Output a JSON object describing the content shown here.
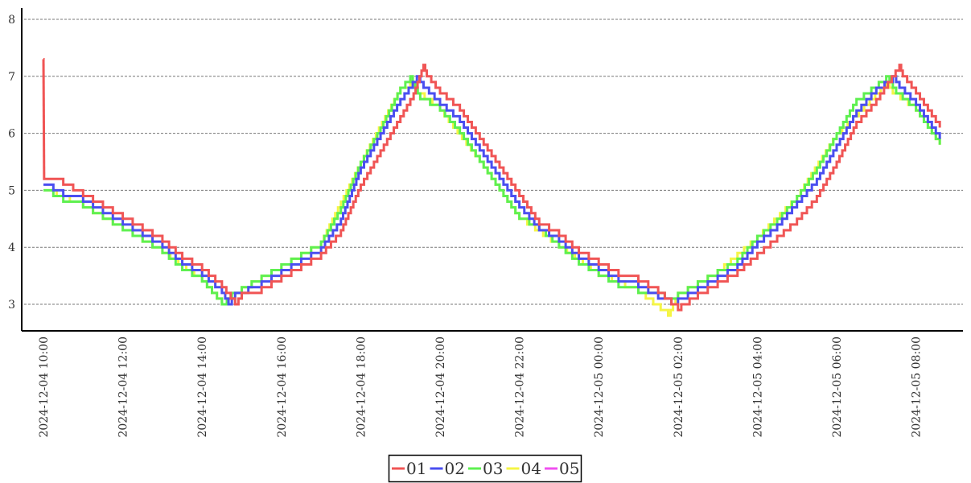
{
  "chart_data": {
    "type": "line",
    "title": "",
    "xlabel": "",
    "ylabel": "",
    "ylim": [
      2.55,
      8.2
    ],
    "yticks": [
      "3",
      "4",
      "5",
      "6",
      "7",
      "8"
    ],
    "xticks": [
      "2024-12-04 10:00",
      "2024-12-04 12:00",
      "2024-12-04 14:00",
      "2024-12-04 16:00",
      "2024-12-04 18:00",
      "2024-12-04 20:00",
      "2024-12-04 22:00",
      "2024-12-05 00:00",
      "2024-12-05 02:00",
      "2024-12-05 04:00",
      "2024-12-05 06:00",
      "2024-12-05 08:00"
    ],
    "xrange": [
      "2024-12-04 09:55",
      "2024-12-05 09:05"
    ],
    "grid": "horizontal dashed",
    "legend_placement": "bottom-center",
    "interpolation": "step",
    "series": [
      {
        "name": "01",
        "color": "#f05555",
        "points": [
          [
            "2024-12-04 10:00",
            7.3
          ],
          [
            "2024-12-04 10:01",
            5.2
          ],
          [
            "2024-12-04 10:30",
            5.1
          ],
          [
            "2024-12-04 11:00",
            4.9
          ],
          [
            "2024-12-04 11:30",
            4.7
          ],
          [
            "2024-12-04 12:00",
            4.5
          ],
          [
            "2024-12-04 12:30",
            4.3
          ],
          [
            "2024-12-04 13:00",
            4.1
          ],
          [
            "2024-12-04 13:30",
            3.8
          ],
          [
            "2024-12-04 14:00",
            3.6
          ],
          [
            "2024-12-04 14:30",
            3.3
          ],
          [
            "2024-12-04 14:50",
            3.0
          ],
          [
            "2024-12-04 15:00",
            3.2
          ],
          [
            "2024-12-04 15:30",
            3.3
          ],
          [
            "2024-12-04 16:00",
            3.5
          ],
          [
            "2024-12-04 16:30",
            3.7
          ],
          [
            "2024-12-04 17:00",
            3.9
          ],
          [
            "2024-12-04 17:30",
            4.3
          ],
          [
            "2024-12-04 18:00",
            5.1
          ],
          [
            "2024-12-04 18:30",
            5.7
          ],
          [
            "2024-12-04 19:00",
            6.3
          ],
          [
            "2024-12-04 19:20",
            6.7
          ],
          [
            "2024-12-04 19:35",
            7.2
          ],
          [
            "2024-12-04 19:40",
            7.0
          ],
          [
            "2024-12-04 20:00",
            6.7
          ],
          [
            "2024-12-04 20:30",
            6.4
          ],
          [
            "2024-12-04 21:00",
            5.9
          ],
          [
            "2024-12-04 21:30",
            5.4
          ],
          [
            "2024-12-04 22:00",
            4.9
          ],
          [
            "2024-12-04 22:30",
            4.4
          ],
          [
            "2024-12-04 23:00",
            4.2
          ],
          [
            "2024-12-04 23:30",
            3.9
          ],
          [
            "2024-12-05 00:00",
            3.7
          ],
          [
            "2024-12-05 00:30",
            3.5
          ],
          [
            "2024-12-05 01:00",
            3.4
          ],
          [
            "2024-12-05 01:30",
            3.2
          ],
          [
            "2024-12-05 02:00",
            2.9
          ],
          [
            "2024-12-05 02:05",
            3.0
          ],
          [
            "2024-12-05 02:30",
            3.2
          ],
          [
            "2024-12-05 03:00",
            3.4
          ],
          [
            "2024-12-05 03:30",
            3.6
          ],
          [
            "2024-12-05 04:00",
            3.9
          ],
          [
            "2024-12-05 04:30",
            4.2
          ],
          [
            "2024-12-05 05:00",
            4.5
          ],
          [
            "2024-12-05 05:30",
            4.9
          ],
          [
            "2024-12-05 06:00",
            5.5
          ],
          [
            "2024-12-05 06:30",
            6.2
          ],
          [
            "2024-12-05 07:00",
            6.6
          ],
          [
            "2024-12-05 07:35",
            7.2
          ],
          [
            "2024-12-05 07:40",
            7.0
          ],
          [
            "2024-12-05 08:00",
            6.7
          ],
          [
            "2024-12-05 08:36",
            6.1
          ]
        ]
      },
      {
        "name": "02",
        "color": "#4a4ef0",
        "points": [
          [
            "2024-12-04 10:00",
            5.1
          ],
          [
            "2024-12-04 10:30",
            4.9
          ],
          [
            "2024-12-04 11:00",
            4.8
          ],
          [
            "2024-12-04 11:30",
            4.6
          ],
          [
            "2024-12-04 12:00",
            4.4
          ],
          [
            "2024-12-04 12:30",
            4.2
          ],
          [
            "2024-12-04 13:00",
            4.0
          ],
          [
            "2024-12-04 13:30",
            3.7
          ],
          [
            "2024-12-04 14:00",
            3.5
          ],
          [
            "2024-12-04 14:30",
            3.2
          ],
          [
            "2024-12-04 14:40",
            3.0
          ],
          [
            "2024-12-04 14:50",
            3.2
          ],
          [
            "2024-12-04 15:30",
            3.4
          ],
          [
            "2024-12-04 16:00",
            3.6
          ],
          [
            "2024-12-04 16:30",
            3.8
          ],
          [
            "2024-12-04 17:00",
            4.0
          ],
          [
            "2024-12-04 17:30",
            4.5
          ],
          [
            "2024-12-04 18:00",
            5.4
          ],
          [
            "2024-12-04 18:30",
            6.0
          ],
          [
            "2024-12-04 19:00",
            6.6
          ],
          [
            "2024-12-04 19:25",
            7.0
          ],
          [
            "2024-12-04 19:35",
            6.8
          ],
          [
            "2024-12-04 20:00",
            6.5
          ],
          [
            "2024-12-04 20:30",
            6.2
          ],
          [
            "2024-12-04 21:00",
            5.7
          ],
          [
            "2024-12-04 21:30",
            5.2
          ],
          [
            "2024-12-04 22:00",
            4.7
          ],
          [
            "2024-12-04 22:30",
            4.3
          ],
          [
            "2024-12-04 23:00",
            4.1
          ],
          [
            "2024-12-04 23:30",
            3.8
          ],
          [
            "2024-12-05 00:00",
            3.6
          ],
          [
            "2024-12-05 00:30",
            3.4
          ],
          [
            "2024-12-05 01:00",
            3.3
          ],
          [
            "2024-12-05 01:30",
            3.1
          ],
          [
            "2024-12-05 01:50",
            3.0
          ],
          [
            "2024-12-05 02:00",
            3.1
          ],
          [
            "2024-12-05 02:30",
            3.3
          ],
          [
            "2024-12-05 03:00",
            3.5
          ],
          [
            "2024-12-05 03:30",
            3.7
          ],
          [
            "2024-12-05 04:00",
            4.1
          ],
          [
            "2024-12-05 04:30",
            4.4
          ],
          [
            "2024-12-05 05:00",
            4.8
          ],
          [
            "2024-12-05 05:30",
            5.2
          ],
          [
            "2024-12-05 06:00",
            5.8
          ],
          [
            "2024-12-05 06:30",
            6.4
          ],
          [
            "2024-12-05 07:00",
            6.8
          ],
          [
            "2024-12-05 07:25",
            7.0
          ],
          [
            "2024-12-05 07:35",
            6.8
          ],
          [
            "2024-12-05 08:00",
            6.5
          ],
          [
            "2024-12-05 08:36",
            5.9
          ]
        ]
      },
      {
        "name": "03",
        "color": "#5ef050",
        "points": [
          [
            "2024-12-04 10:00",
            5.0
          ],
          [
            "2024-12-04 10:30",
            4.8
          ],
          [
            "2024-12-04 11:00",
            4.7
          ],
          [
            "2024-12-04 11:30",
            4.5
          ],
          [
            "2024-12-04 12:00",
            4.3
          ],
          [
            "2024-12-04 12:30",
            4.1
          ],
          [
            "2024-12-04 13:00",
            3.9
          ],
          [
            "2024-12-04 13:30",
            3.6
          ],
          [
            "2024-12-04 14:00",
            3.4
          ],
          [
            "2024-12-04 14:30",
            3.0
          ],
          [
            "2024-12-04 14:45",
            3.2
          ],
          [
            "2024-12-04 15:30",
            3.5
          ],
          [
            "2024-12-04 16:00",
            3.7
          ],
          [
            "2024-12-04 16:30",
            3.9
          ],
          [
            "2024-12-04 17:00",
            4.1
          ],
          [
            "2024-12-04 17:30",
            4.7
          ],
          [
            "2024-12-04 18:00",
            5.5
          ],
          [
            "2024-12-04 18:30",
            6.1
          ],
          [
            "2024-12-04 19:00",
            6.8
          ],
          [
            "2024-12-04 19:15",
            7.0
          ],
          [
            "2024-12-04 19:30",
            6.6
          ],
          [
            "2024-12-04 20:00",
            6.4
          ],
          [
            "2024-12-04 20:30",
            6.0
          ],
          [
            "2024-12-04 21:00",
            5.5
          ],
          [
            "2024-12-04 21:30",
            5.0
          ],
          [
            "2024-12-04 22:00",
            4.5
          ],
          [
            "2024-12-04 22:30",
            4.3
          ],
          [
            "2024-12-04 23:00",
            4.0
          ],
          [
            "2024-12-04 23:30",
            3.7
          ],
          [
            "2024-12-05 00:00",
            3.5
          ],
          [
            "2024-12-05 00:30",
            3.3
          ],
          [
            "2024-12-05 01:00",
            3.2
          ],
          [
            "2024-12-05 01:40",
            3.1
          ],
          [
            "2024-12-05 02:00",
            3.2
          ],
          [
            "2024-12-05 02:30",
            3.4
          ],
          [
            "2024-12-05 03:00",
            3.6
          ],
          [
            "2024-12-05 03:30",
            3.8
          ],
          [
            "2024-12-05 04:00",
            4.2
          ],
          [
            "2024-12-05 04:30",
            4.5
          ],
          [
            "2024-12-05 05:00",
            4.9
          ],
          [
            "2024-12-05 05:30",
            5.4
          ],
          [
            "2024-12-05 06:00",
            6.0
          ],
          [
            "2024-12-05 06:30",
            6.6
          ],
          [
            "2024-12-05 07:15",
            7.0
          ],
          [
            "2024-12-05 07:30",
            6.7
          ],
          [
            "2024-12-05 08:00",
            6.4
          ],
          [
            "2024-12-05 08:36",
            5.8
          ]
        ]
      },
      {
        "name": "04",
        "color": "#f5f545",
        "points": [
          [
            "2024-12-04 10:00",
            5.0
          ],
          [
            "2024-12-04 11:00",
            4.7
          ],
          [
            "2024-12-04 12:00",
            4.3
          ],
          [
            "2024-12-04 13:00",
            3.9
          ],
          [
            "2024-12-04 14:00",
            3.4
          ],
          [
            "2024-12-04 14:30",
            3.0
          ],
          [
            "2024-12-04 15:00",
            3.3
          ],
          [
            "2024-12-04 16:00",
            3.7
          ],
          [
            "2024-12-04 17:00",
            4.1
          ],
          [
            "2024-12-04 18:00",
            5.5
          ],
          [
            "2024-12-04 19:00",
            6.8
          ],
          [
            "2024-12-04 19:15",
            6.9
          ],
          [
            "2024-12-04 19:25",
            6.7
          ],
          [
            "2024-12-04 20:00",
            6.4
          ],
          [
            "2024-12-04 21:00",
            5.5
          ],
          [
            "2024-12-04 22:00",
            4.5
          ],
          [
            "2024-12-04 23:00",
            4.0
          ],
          [
            "2024-12-05 00:00",
            3.5
          ],
          [
            "2024-12-05 01:00",
            3.2
          ],
          [
            "2024-12-05 01:45",
            2.8
          ],
          [
            "2024-12-05 02:00",
            3.2
          ],
          [
            "2024-12-05 03:00",
            3.6
          ],
          [
            "2024-12-05 04:00",
            4.2
          ],
          [
            "2024-12-05 05:00",
            4.9
          ],
          [
            "2024-12-05 06:00",
            6.0
          ],
          [
            "2024-12-05 07:15",
            6.9
          ],
          [
            "2024-12-05 07:25",
            6.7
          ],
          [
            "2024-12-05 08:00",
            6.4
          ],
          [
            "2024-12-05 08:36",
            5.8
          ]
        ]
      },
      {
        "name": "05",
        "color": "#f050f0",
        "points": []
      }
    ]
  }
}
